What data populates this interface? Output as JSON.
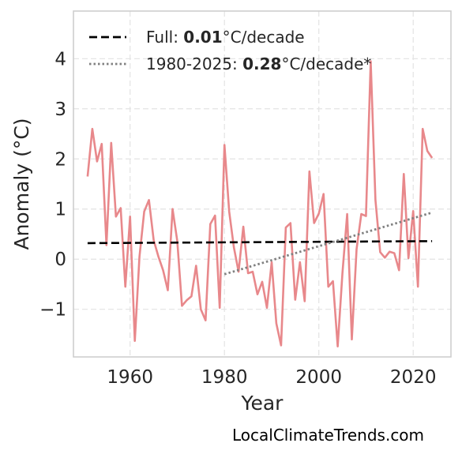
{
  "chart_data": {
    "type": "line",
    "xlabel": "Year",
    "ylabel": "Anomaly (°C)",
    "xlim": [
      1948,
      2028
    ],
    "ylim": [
      -1.95,
      4.95
    ],
    "x_ticks": [
      1960,
      1980,
      2000,
      2020
    ],
    "y_ticks": [
      -1,
      0,
      1,
      2,
      3,
      4
    ],
    "y_tick_labels": [
      "−1",
      "0",
      "1",
      "2",
      "3",
      "4"
    ],
    "grid": true,
    "legend_position": "top-left",
    "series": [
      {
        "color": "#e8888b",
        "x": [
          1951,
          1952,
          1953,
          1954,
          1955,
          1956,
          1957,
          1958,
          1959,
          1960,
          1961,
          1962,
          1963,
          1964,
          1965,
          1966,
          1967,
          1968,
          1969,
          1970,
          1971,
          1972,
          1973,
          1974,
          1975,
          1976,
          1977,
          1978,
          1979,
          1980,
          1981,
          1982,
          1983,
          1984,
          1985,
          1986,
          1987,
          1988,
          1989,
          1990,
          1991,
          1992,
          1993,
          1994,
          1995,
          1996,
          1997,
          1998,
          1999,
          2000,
          2001,
          2002,
          2003,
          2004,
          2005,
          2006,
          2007,
          2008,
          2009,
          2010,
          2011,
          2012,
          2013,
          2014,
          2015,
          2016,
          2017,
          2018,
          2019,
          2020,
          2021,
          2022,
          2023,
          2024
        ],
        "y": [
          1.65,
          2.6,
          1.95,
          2.3,
          0.28,
          2.32,
          0.85,
          1.02,
          -0.55,
          0.85,
          -1.63,
          0.05,
          0.95,
          1.18,
          0.38,
          0.05,
          -0.22,
          -0.62,
          1.0,
          0.36,
          -0.93,
          -0.82,
          -0.74,
          -0.13,
          -1.0,
          -1.22,
          0.7,
          0.87,
          -0.97,
          2.28,
          0.95,
          0.24,
          -0.25,
          0.65,
          -0.28,
          -0.25,
          -0.7,
          -0.45,
          -0.97,
          -0.06,
          -1.28,
          -1.72,
          0.63,
          0.72,
          -0.81,
          -0.06,
          -0.84,
          1.75,
          0.72,
          0.91,
          1.3,
          -0.55,
          -0.44,
          -1.74,
          -0.28,
          0.9,
          -1.6,
          0.2,
          0.9,
          0.86,
          3.95,
          1.18,
          0.14,
          0.03,
          0.15,
          0.12,
          -0.22,
          1.7,
          0.02,
          0.96,
          -0.55,
          2.6,
          2.16,
          2.02
        ]
      }
    ],
    "trends": [
      {
        "label_prefix": "Full: ",
        "label_value": "0.01",
        "label_suffix": "°C/decade",
        "style": "dashed",
        "color": "#000000",
        "x": [
          1951,
          2024
        ],
        "y": [
          0.32,
          0.36
        ]
      },
      {
        "label_prefix": "1980-2025: ",
        "label_value": "0.28",
        "label_suffix": "°C/decade*",
        "style": "dotted",
        "color": "#808080",
        "x": [
          1980,
          2024
        ],
        "y": [
          -0.3,
          0.93
        ]
      }
    ]
  },
  "footer": {
    "credit": "LocalClimateTrends.com"
  }
}
